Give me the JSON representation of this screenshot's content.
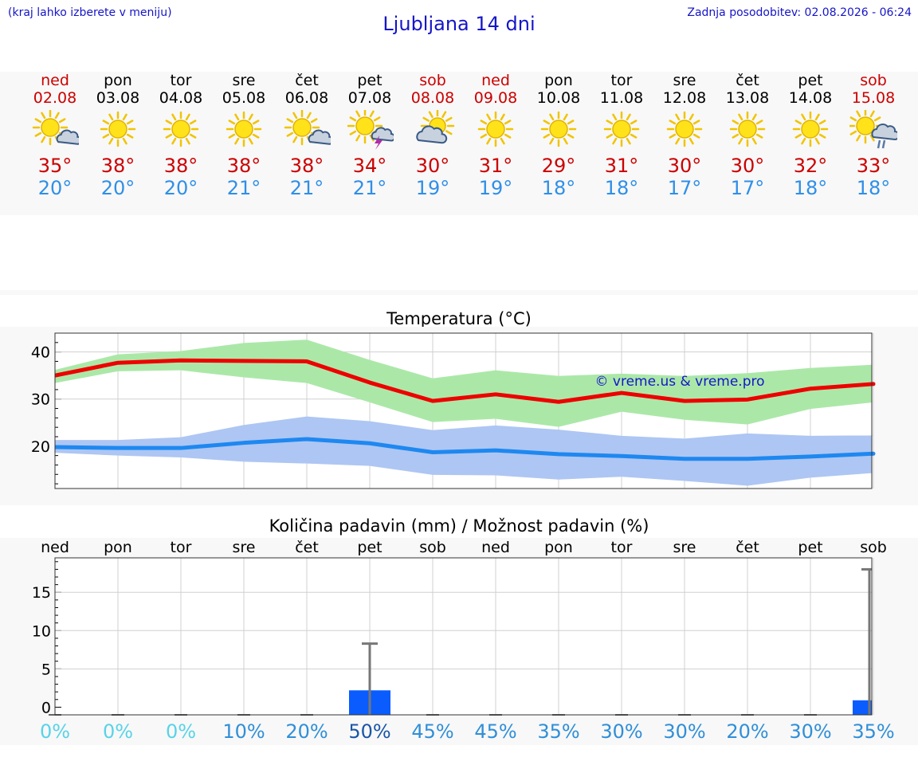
{
  "header": {
    "menu_hint": "(kraj lahko izberete v meniju)",
    "title": "Ljubljana 14 dni",
    "last_update": "Zadnja posodobitev: 02.08.2026 - 06:24"
  },
  "days": [
    {
      "name": "ned",
      "date": "02.08",
      "max": "35°",
      "min": "20°",
      "icon": "sun-cloud-icon",
      "weekend": true
    },
    {
      "name": "pon",
      "date": "03.08",
      "max": "38°",
      "min": "20°",
      "icon": "sun-icon",
      "weekend": false
    },
    {
      "name": "tor",
      "date": "04.08",
      "max": "38°",
      "min": "20°",
      "icon": "sun-icon",
      "weekend": false
    },
    {
      "name": "sre",
      "date": "05.08",
      "max": "38°",
      "min": "21°",
      "icon": "sun-icon",
      "weekend": false
    },
    {
      "name": "čet",
      "date": "06.08",
      "max": "38°",
      "min": "21°",
      "icon": "sun-cloud-icon",
      "weekend": false
    },
    {
      "name": "pet",
      "date": "07.08",
      "max": "34°",
      "min": "21°",
      "icon": "sun-thunder-icon",
      "weekend": false
    },
    {
      "name": "sob",
      "date": "08.08",
      "max": "30°",
      "min": "19°",
      "icon": "cloud-sun-icon",
      "weekend": true
    },
    {
      "name": "ned",
      "date": "09.08",
      "max": "31°",
      "min": "19°",
      "icon": "sun-icon",
      "weekend": true
    },
    {
      "name": "pon",
      "date": "10.08",
      "max": "29°",
      "min": "18°",
      "icon": "sun-icon",
      "weekend": false
    },
    {
      "name": "tor",
      "date": "11.08",
      "max": "31°",
      "min": "18°",
      "icon": "sun-icon",
      "weekend": false
    },
    {
      "name": "sre",
      "date": "12.08",
      "max": "30°",
      "min": "17°",
      "icon": "sun-icon",
      "weekend": false
    },
    {
      "name": "čet",
      "date": "13.08",
      "max": "30°",
      "min": "17°",
      "icon": "sun-icon",
      "weekend": false
    },
    {
      "name": "pet",
      "date": "14.08",
      "max": "32°",
      "min": "18°",
      "icon": "sun-icon",
      "weekend": false
    },
    {
      "name": "sob",
      "date": "15.08",
      "max": "33°",
      "min": "18°",
      "icon": "sun-rain-icon",
      "weekend": true
    }
  ],
  "chart_data": [
    {
      "type": "line",
      "title": "Temperatura (°C)",
      "watermark": "© vreme.us & vreme.pro",
      "x": [
        0,
        1,
        2,
        3,
        4,
        5,
        6,
        7,
        8,
        9,
        10,
        11,
        12,
        13
      ],
      "ylim": [
        11,
        44
      ],
      "yticks": [
        20,
        30,
        40
      ],
      "grid": true,
      "series": [
        {
          "values": [
            35,
            37.7,
            38.2,
            38.1,
            38,
            33.5,
            29.6,
            31,
            29.4,
            31.3,
            29.6,
            29.9,
            32.2,
            33.2
          ],
          "color": "#ee0000"
        },
        {
          "values": [
            19.8,
            19.6,
            19.6,
            20.7,
            21.5,
            20.6,
            18.7,
            19.1,
            18.3,
            17.9,
            17.3,
            17.3,
            17.8,
            18.4
          ],
          "color": "#1e88f0"
        }
      ],
      "bands": [
        {
          "upper": [
            36.2,
            39.5,
            40.2,
            41.9,
            42.6,
            38.3,
            34.4,
            36.1,
            34.9,
            35.4,
            34.9,
            35.5,
            36.6,
            37.3
          ],
          "lower": [
            33.4,
            35.9,
            36.1,
            34.6,
            33.4,
            29.3,
            25.1,
            25.8,
            24.1,
            27.3,
            25.6,
            24.6,
            27.9,
            29.3
          ],
          "color": "#abe8a8"
        },
        {
          "upper": [
            21.3,
            21.3,
            21.9,
            24.5,
            26.3,
            25.3,
            23.4,
            24.4,
            23.5,
            22.2,
            21.6,
            22.7,
            22.2,
            22.3
          ],
          "lower": [
            18.6,
            18,
            17.6,
            16.7,
            16.3,
            15.8,
            13.9,
            13.8,
            12.9,
            13.5,
            12.6,
            11.6,
            13.3,
            14.3
          ],
          "color": "#aec6f3"
        }
      ]
    },
    {
      "type": "bar",
      "title": "Količina padavin (mm) / Možnost padavin (%)",
      "categories": [
        "ned",
        "pon",
        "tor",
        "sre",
        "čet",
        "pet",
        "sob",
        "ned",
        "pon",
        "tor",
        "sre",
        "čet",
        "pet",
        "sob"
      ],
      "values": [
        0,
        0,
        0,
        0,
        0,
        2.2,
        0,
        0,
        0,
        0,
        0,
        0,
        0,
        0.9
      ],
      "error_max": [
        0,
        0,
        0,
        0,
        0,
        8.3,
        0,
        0,
        0,
        0,
        0,
        0,
        0,
        18
      ],
      "probability": [
        "0%",
        "0%",
        "0%",
        "10%",
        "20%",
        "50%",
        "45%",
        "45%",
        "35%",
        "30%",
        "30%",
        "20%",
        "30%",
        "35%"
      ],
      "ylim": [
        -1,
        19.5
      ],
      "yticks": [
        0,
        5,
        10,
        15
      ],
      "grid": true,
      "bar_color": "#0a5cff"
    }
  ]
}
